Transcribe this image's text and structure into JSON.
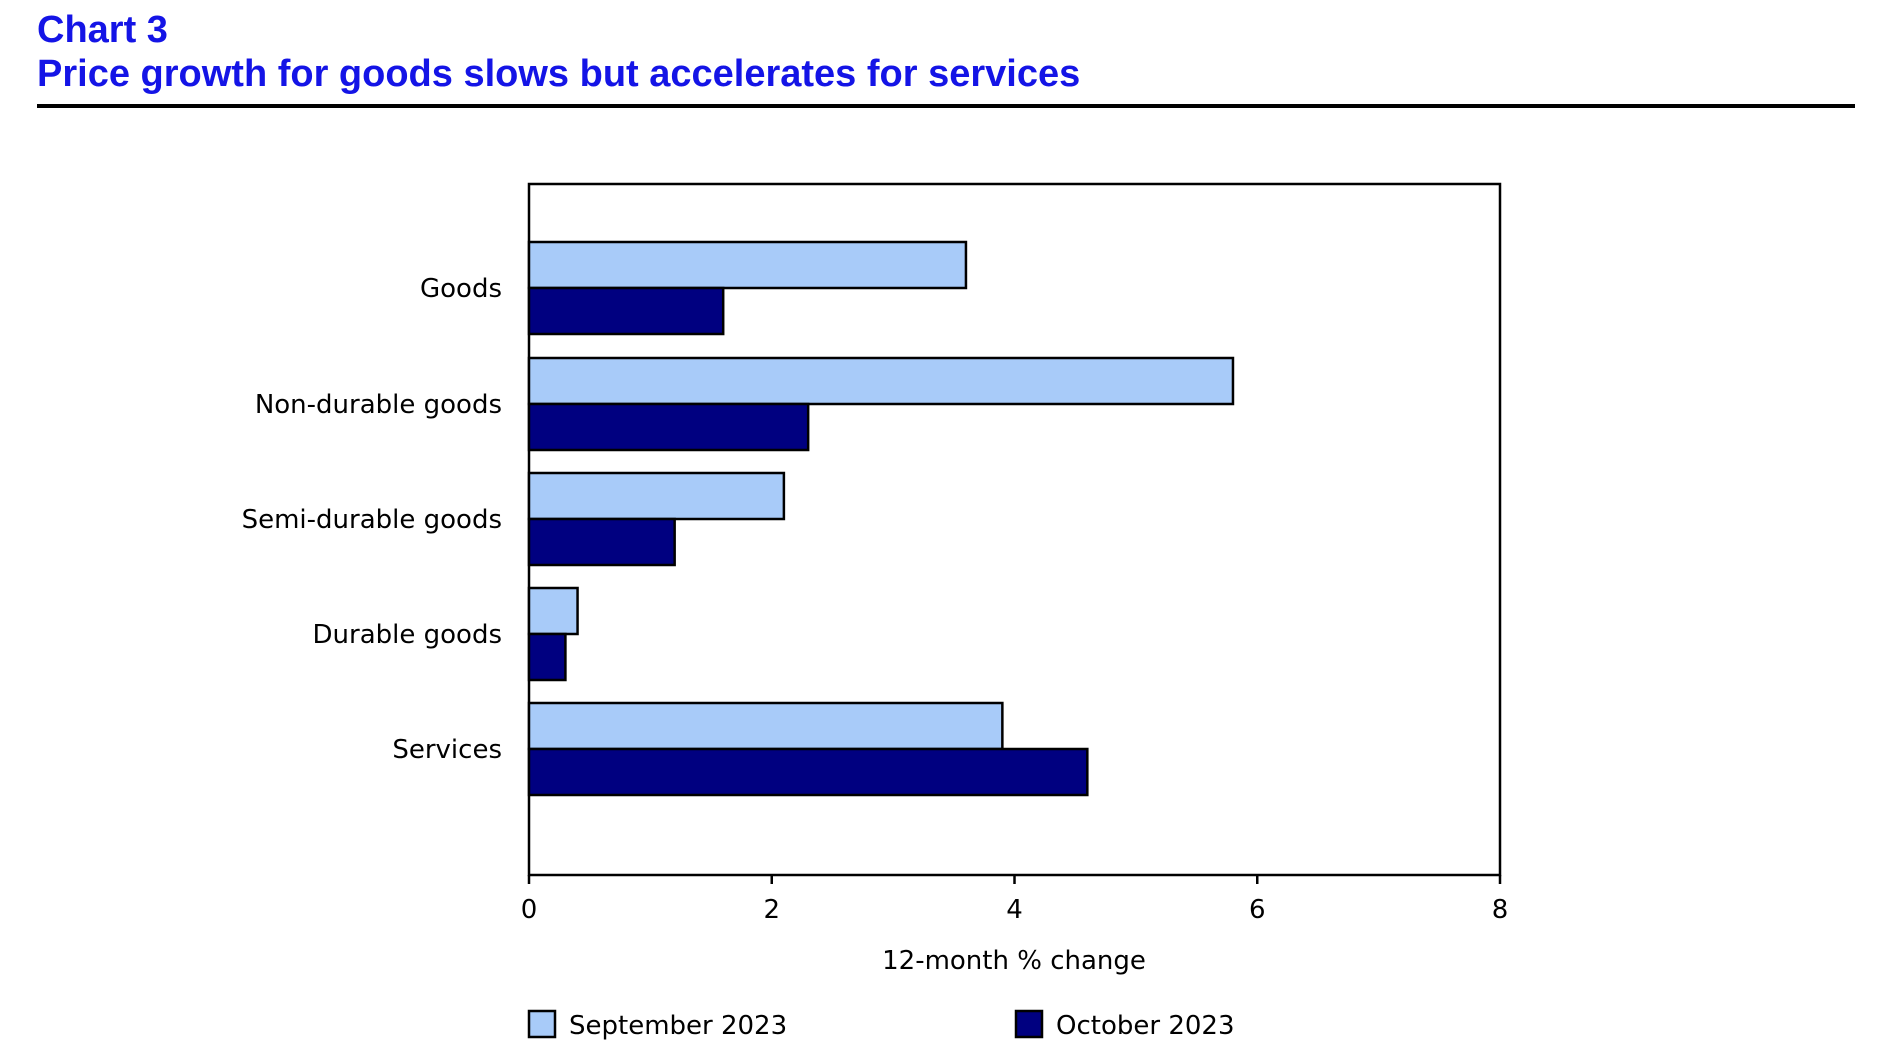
{
  "header": {
    "chart_number": "Chart 3",
    "title": "Price growth for goods slows but accelerates for services"
  },
  "colors": {
    "title": "#1414e6",
    "september": "#a8cbf9",
    "october": "#000080",
    "bar_stroke": "#000000"
  },
  "chart_data": {
    "type": "bar",
    "orientation": "horizontal",
    "categories": [
      "Goods",
      "Non-durable goods",
      "Semi-durable goods",
      "Durable goods",
      "Services"
    ],
    "series": [
      {
        "name": "September 2023",
        "values": [
          3.6,
          5.8,
          2.1,
          0.4,
          3.9
        ]
      },
      {
        "name": "October 2023",
        "values": [
          1.6,
          2.3,
          1.2,
          0.3,
          4.6
        ]
      }
    ],
    "xlabel": "12-month % change",
    "xlim": [
      0,
      8
    ],
    "xticks": [
      "0",
      "2",
      "4",
      "6",
      "8"
    ],
    "grid": false,
    "legend_position": "bottom"
  }
}
